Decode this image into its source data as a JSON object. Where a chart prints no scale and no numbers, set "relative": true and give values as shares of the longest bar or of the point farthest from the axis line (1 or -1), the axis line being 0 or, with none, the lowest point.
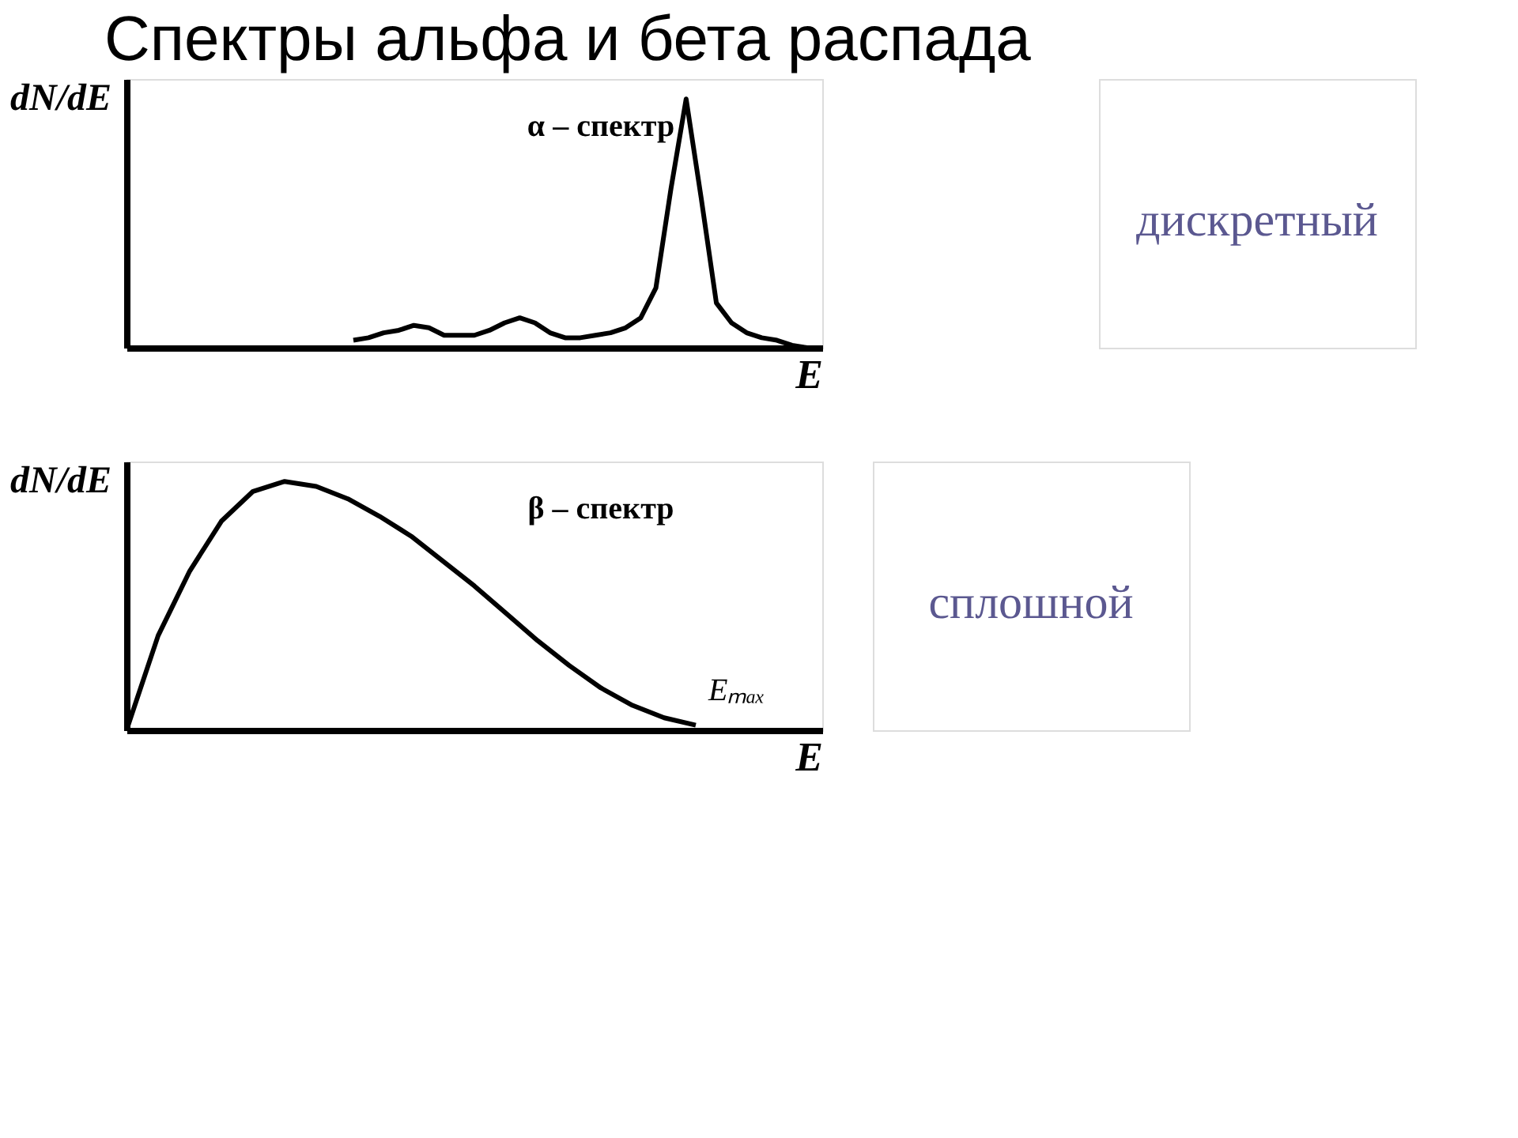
{
  "chart_data": [
    {
      "type": "line",
      "title": "Спектры альфа  и бета распада",
      "xlabel": "E",
      "ylabel": "dN/dE",
      "relative": true,
      "tick_labels": false,
      "color": "#000000",
      "categories": [
        null,
        null,
        null,
        null,
        null,
        null,
        null,
        null,
        null,
        null,
        null,
        null,
        null,
        null,
        null,
        null,
        null,
        null,
        null,
        null,
        null,
        null,
        null,
        null,
        null,
        null,
        null,
        null,
        null,
        null,
        null,
        null,
        null,
        null,
        null,
        null,
        null,
        null,
        null,
        null,
        null,
        null,
        null,
        null,
        null,
        null
      ],
      "values": [
        null,
        null,
        null,
        null,
        null,
        null,
        null,
        null,
        null,
        null,
        null,
        null,
        null,
        null,
        null,
        0.03,
        0.04,
        0.06,
        0.07,
        0.09,
        0.08,
        0.05,
        0.05,
        0.05,
        0.07,
        0.1,
        0.12,
        0.1,
        0.06,
        0.04,
        0.04,
        0.05,
        0.06,
        0.08,
        0.12,
        0.24,
        0.64,
        1,
        0.6,
        0.18,
        0.1,
        0.06,
        0.04,
        0.03,
        0.01,
        0
      ],
      "annotations": [
        "α – спектр",
        "дискретный"
      ]
    },
    {
      "type": "line",
      "xlabel": "E",
      "ylabel": "dN/dE",
      "relative": true,
      "tick_labels": false,
      "color": "#000000",
      "categories": [
        null,
        null,
        null,
        null,
        null,
        null,
        null,
        null,
        null,
        null,
        null,
        null,
        null,
        null,
        null,
        null,
        null,
        null,
        null,
        null,
        null,
        null
      ],
      "values": [
        0,
        0.38,
        0.64,
        0.84,
        0.96,
        1,
        0.98,
        0.93,
        0.86,
        0.78,
        0.68,
        0.58,
        0.47,
        0.36,
        0.26,
        0.17,
        0.1,
        0.05,
        0.02,
        null,
        null,
        null
      ],
      "annotations": [
        "β – спектр",
        "Eₘₐₓ",
        "сплошной"
      ]
    }
  ]
}
